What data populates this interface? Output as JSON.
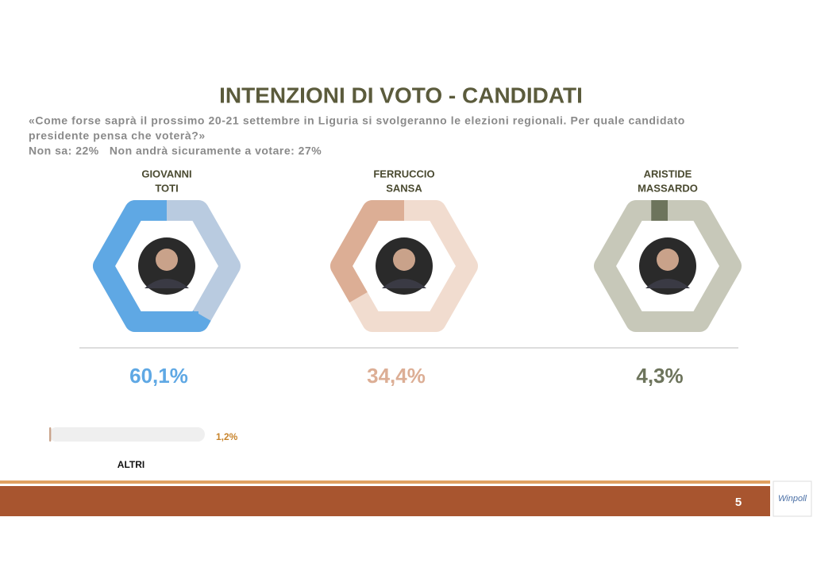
{
  "header": {
    "title": "INTENZIONI DI VOTO - CANDIDATI",
    "question": [
      "«Come forse saprà il prossimo 20-21 settembre in Liguria si svolgeranno le elezioni regionali. Per quale candidato",
      "presidente pensa che voterà?»"
    ],
    "note": "Non sa: 22%   Non andrà sicuramente a votare: 27%"
  },
  "chart_data": [
    {
      "type": "donut",
      "title": [
        "GIOVANNI",
        "TOTI"
      ],
      "values": [
        60.1
      ],
      "value_labels": [
        "60,1%"
      ],
      "color": "#5fa8e4",
      "track_color": "#b9cbe0"
    },
    {
      "type": "donut",
      "title": [
        "FERRUCCIO",
        "SANSA"
      ],
      "values": [
        34.4
      ],
      "value_labels": [
        "34,4%"
      ],
      "color": "#dcae95",
      "track_color": "#f1dccf"
    },
    {
      "type": "donut",
      "title": [
        "ARISTIDE",
        "MASSARDO"
      ],
      "values": [
        4.3
      ],
      "value_labels": [
        "4,3%"
      ],
      "color": "#6d745c",
      "track_color": "#c7c8b9"
    },
    {
      "type": "bar",
      "title": "ALTRI",
      "values": [
        1.2
      ],
      "value_labels": [
        "1,2%"
      ],
      "color": "#c9a48c",
      "label_color": "#c8842c",
      "xlim": [
        0,
        100
      ]
    }
  ],
  "footer": {
    "page": "5",
    "logo": "Winpoll"
  }
}
